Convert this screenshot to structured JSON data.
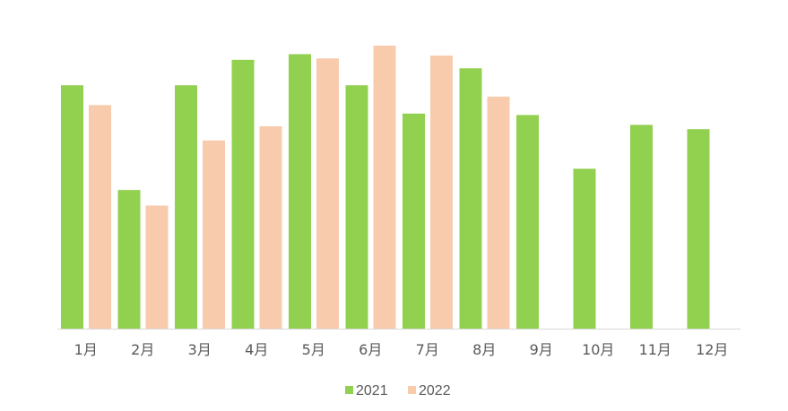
{
  "chart_data": {
    "type": "bar",
    "title": "",
    "xlabel": "",
    "ylabel": "",
    "categories": [
      "1月",
      "2月",
      "3月",
      "4月",
      "5月",
      "6月",
      "7月",
      "8月",
      "9月",
      "10月",
      "11月",
      "12月"
    ],
    "series": [
      {
        "name": "2021",
        "color": "#92d050",
        "values": [
          86,
          49,
          86,
          95,
          97,
          86,
          76,
          92,
          75.5,
          56.5,
          72,
          70.5
        ]
      },
      {
        "name": "2022",
        "color": "#f8cbad",
        "values": [
          79,
          43.5,
          66.5,
          71.5,
          95.5,
          100,
          96.5,
          82,
          null,
          null,
          null,
          null
        ]
      }
    ],
    "ylim": [
      0,
      100
    ],
    "grid": false,
    "legend_position": "bottom"
  }
}
